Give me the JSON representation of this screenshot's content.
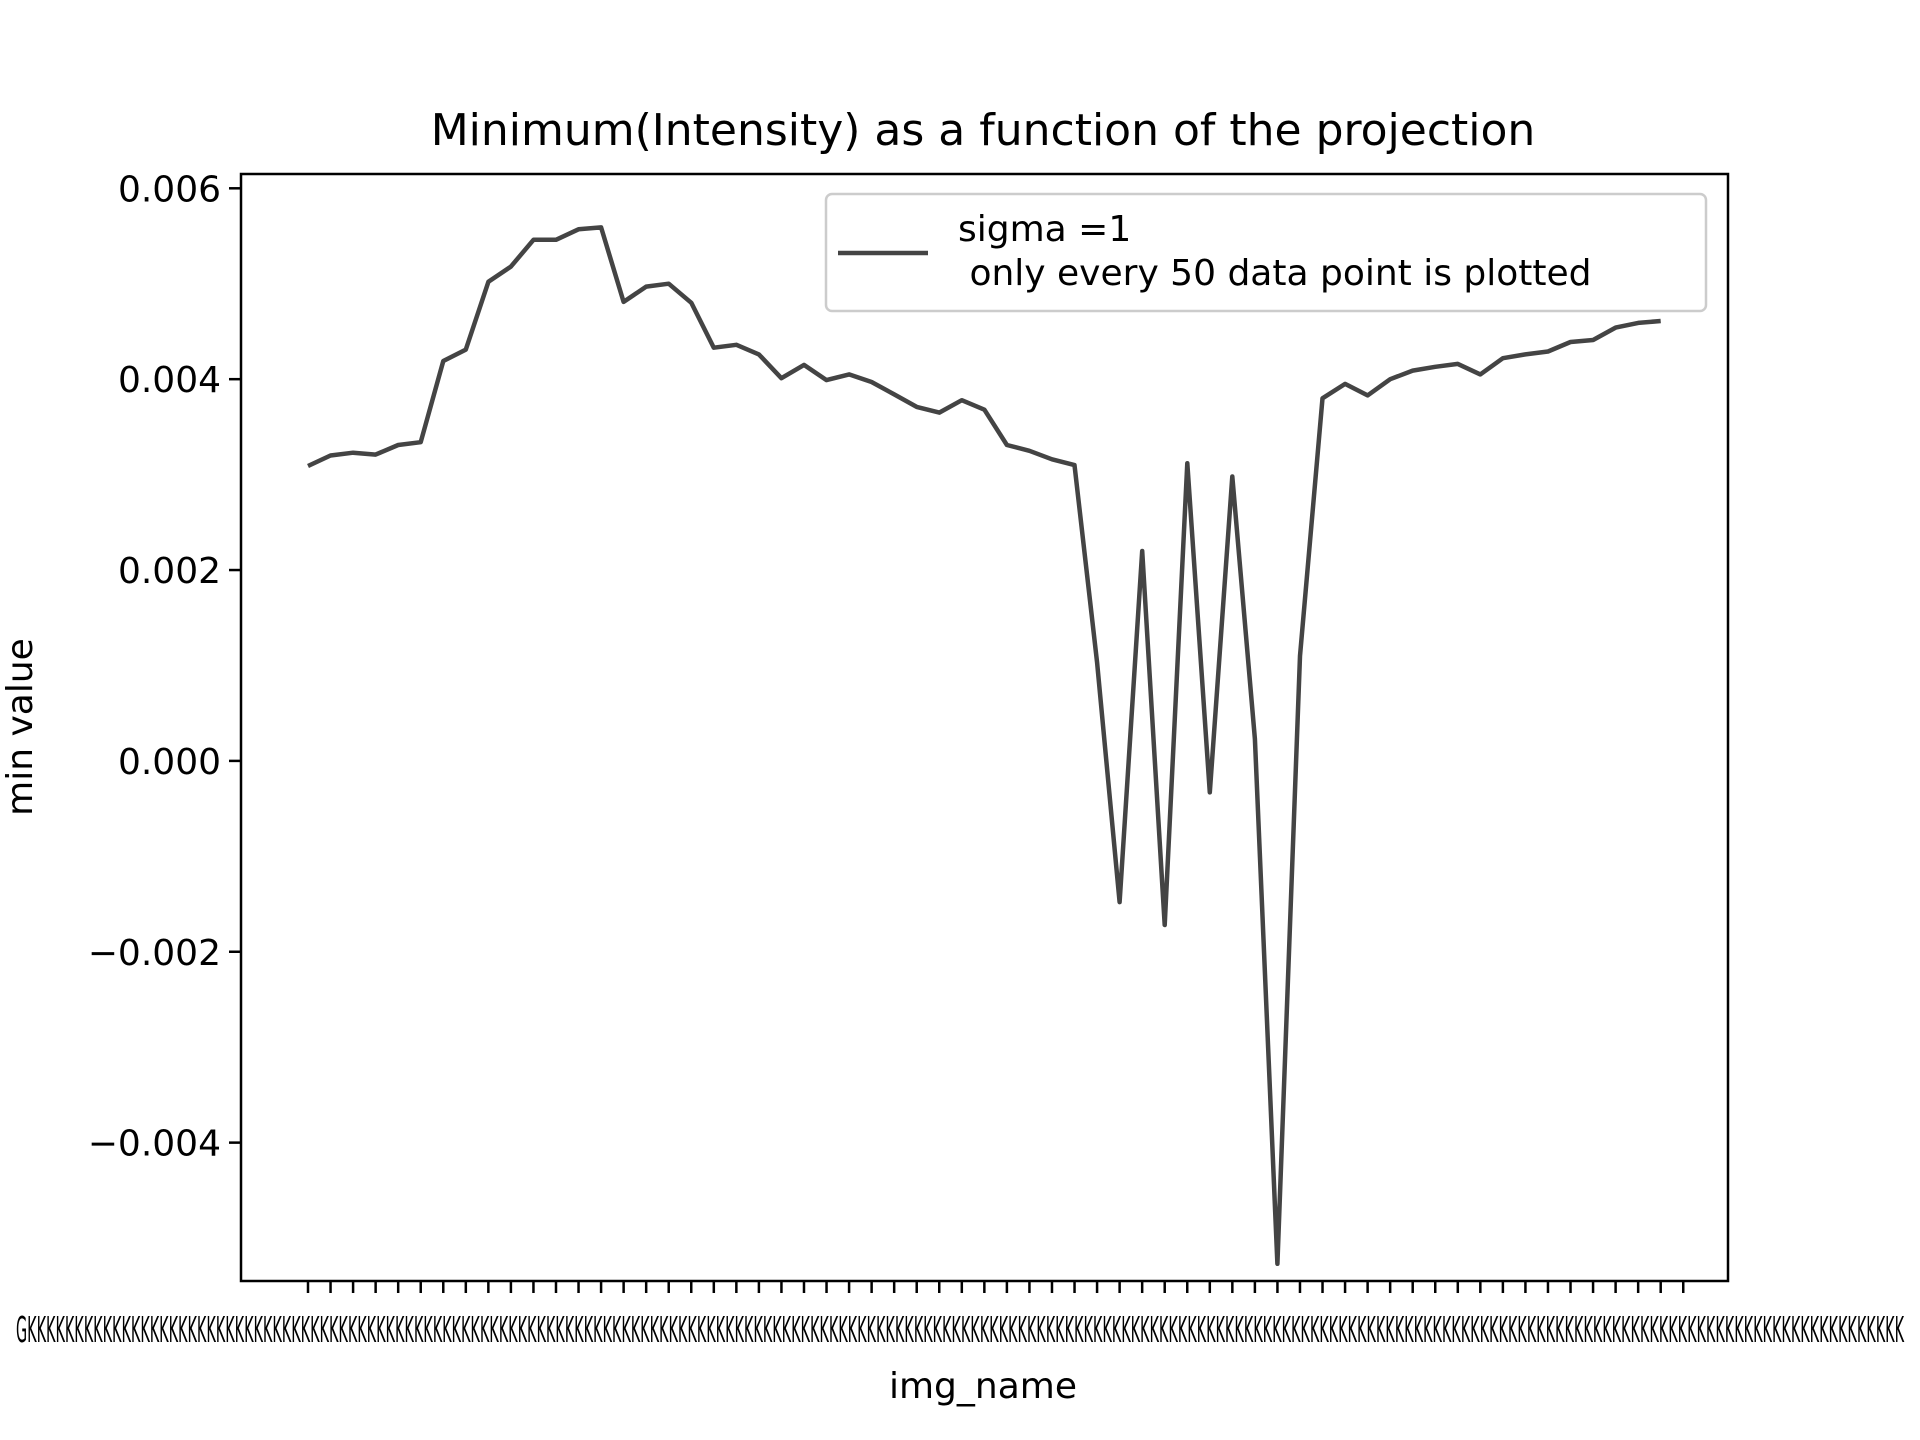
{
  "chart_data": {
    "type": "line",
    "title": "Minimum(Intensity) as a function of the projection",
    "xlabel": "img_name",
    "ylabel": "min value",
    "ylim": [
      -0.00545,
      0.00615
    ],
    "yticks": [
      -0.004,
      -0.002,
      0.0,
      0.002,
      0.004,
      0.006
    ],
    "ytick_labels": [
      "−0.004",
      "−0.002",
      "0.000",
      "0.002",
      "0.004",
      "0.006"
    ],
    "x_tick_count": 62,
    "x_tick_labels_overlapping": "GKKKKKKKKKKKKKKKKKKKKKKKKKKKKKKKKKKKKKKKKKKKKKKKKKKKKKKKKKKKKKKKKKKKKKKKKKKKKKKKKKKKKKKKKKKKKKKKKKKKKKKKKKKKKKKKKKKKKKKKKKKKKKKKKKKKKKKKKKKKKKKKKKKKKKKKKKKKKKKKKKKKKKKKKKKKKKKKKKKKKKKKKKKKKKKKKKKKKKKK",
    "grid": false,
    "legend_position": "top-right",
    "series": [
      {
        "name": "sigma =1\n only every 50 data point is plotted",
        "color": "#444444",
        "values": [
          0.00309,
          0.0032,
          0.00323,
          0.00321,
          0.00331,
          0.00334,
          0.00419,
          0.00431,
          0.00502,
          0.00518,
          0.00546,
          0.00546,
          0.00557,
          0.00559,
          0.00481,
          0.00497,
          0.005,
          0.0048,
          0.00433,
          0.00436,
          0.00426,
          0.00401,
          0.00415,
          0.00399,
          0.00405,
          0.00397,
          0.00384,
          0.00371,
          0.00365,
          0.00378,
          0.00368,
          0.00331,
          0.00325,
          0.00316,
          0.0031,
          0.00103,
          -0.00148,
          0.0022,
          -0.00172,
          0.00312,
          -0.00033,
          0.00298,
          0.00023,
          -0.00527,
          0.0011,
          0.0038,
          0.00395,
          0.00383,
          0.004,
          0.00409,
          0.00413,
          0.00416,
          0.00405,
          0.00422,
          0.00426,
          0.00429,
          0.00439,
          0.00441,
          0.00454,
          0.00459,
          0.00461
        ]
      }
    ]
  }
}
